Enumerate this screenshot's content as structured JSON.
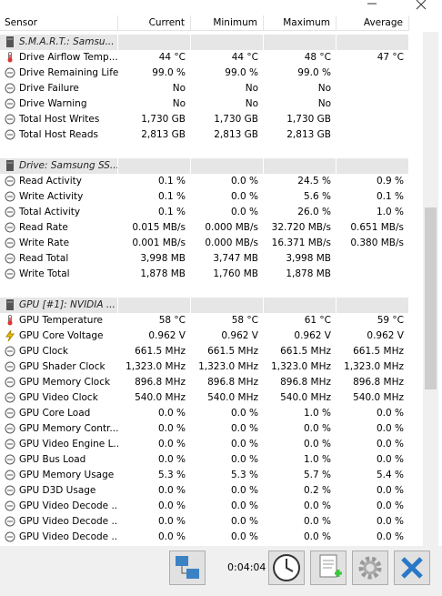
{
  "table": {
    "columns": [
      "Sensor",
      "Current",
      "Minimum",
      "Maximum",
      "Average"
    ],
    "groups": [
      {
        "title": "S.M.A.R.T.: Samsu...",
        "rows": [
          {
            "icon": "temp",
            "label": "Drive Airflow Temp...",
            "values": [
              "44 °C",
              "44 °C",
              "48 °C",
              "47 °C"
            ]
          },
          {
            "icon": "sensor",
            "label": "Drive Remaining Life",
            "values": [
              "99.0 %",
              "99.0 %",
              "99.0 %"
            ]
          },
          {
            "icon": "sensor",
            "label": "Drive Failure",
            "values": [
              "No",
              "No",
              "No"
            ]
          },
          {
            "icon": "sensor",
            "label": "Drive Warning",
            "values": [
              "No",
              "No",
              "No"
            ]
          },
          {
            "icon": "sensor",
            "label": "Total Host Writes",
            "values": [
              "1,730 GB",
              "1,730 GB",
              "1,730 GB"
            ]
          },
          {
            "icon": "sensor",
            "label": "Total Host Reads",
            "values": [
              "2,813 GB",
              "2,813 GB",
              "2,813 GB"
            ]
          }
        ]
      },
      {
        "title": "Drive: Samsung SS...",
        "rows": [
          {
            "icon": "sensor",
            "label": "Read Activity",
            "values": [
              "0.1 %",
              "0.0 %",
              "24.5 %",
              "0.9 %"
            ]
          },
          {
            "icon": "sensor",
            "label": "Write Activity",
            "values": [
              "0.1 %",
              "0.0 %",
              "5.6 %",
              "0.1 %"
            ]
          },
          {
            "icon": "sensor",
            "label": "Total Activity",
            "values": [
              "0.1 %",
              "0.0 %",
              "26.0 %",
              "1.0 %"
            ]
          },
          {
            "icon": "sensor",
            "label": "Read Rate",
            "values": [
              "0.015 MB/s",
              "0.000 MB/s",
              "32.720 MB/s",
              "0.651 MB/s"
            ]
          },
          {
            "icon": "sensor",
            "label": "Write Rate",
            "values": [
              "0.001 MB/s",
              "0.000 MB/s",
              "16.371 MB/s",
              "0.380 MB/s"
            ]
          },
          {
            "icon": "sensor",
            "label": "Read Total",
            "values": [
              "3,998 MB",
              "3,747 MB",
              "3,998 MB"
            ]
          },
          {
            "icon": "sensor",
            "label": "Write Total",
            "values": [
              "1,878 MB",
              "1,760 MB",
              "1,878 MB"
            ]
          }
        ]
      },
      {
        "title": "GPU [#1]: NVIDIA ...",
        "rows": [
          {
            "icon": "temp",
            "label": "GPU Temperature",
            "values": [
              "58 °C",
              "58 °C",
              "61 °C",
              "59 °C"
            ]
          },
          {
            "icon": "volt",
            "label": "GPU Core Voltage",
            "values": [
              "0.962 V",
              "0.962 V",
              "0.962 V",
              "0.962 V"
            ]
          },
          {
            "icon": "sensor",
            "label": "GPU Clock",
            "values": [
              "661.5 MHz",
              "661.5 MHz",
              "661.5 MHz",
              "661.5 MHz"
            ]
          },
          {
            "icon": "sensor",
            "label": "GPU Shader Clock",
            "values": [
              "1,323.0 MHz",
              "1,323.0 MHz",
              "1,323.0 MHz",
              "1,323.0 MHz"
            ]
          },
          {
            "icon": "sensor",
            "label": "GPU Memory Clock",
            "values": [
              "896.8 MHz",
              "896.8 MHz",
              "896.8 MHz",
              "896.8 MHz"
            ]
          },
          {
            "icon": "sensor",
            "label": "GPU Video Clock",
            "values": [
              "540.0 MHz",
              "540.0 MHz",
              "540.0 MHz",
              "540.0 MHz"
            ]
          },
          {
            "icon": "sensor",
            "label": "GPU Core Load",
            "values": [
              "0.0 %",
              "0.0 %",
              "1.0 %",
              "0.0 %"
            ]
          },
          {
            "icon": "sensor",
            "label": "GPU Memory Contr...",
            "values": [
              "0.0 %",
              "0.0 %",
              "0.0 %",
              "0.0 %"
            ]
          },
          {
            "icon": "sensor",
            "label": "GPU Video Engine L...",
            "values": [
              "0.0 %",
              "0.0 %",
              "0.0 %",
              "0.0 %"
            ]
          },
          {
            "icon": "sensor",
            "label": "GPU Bus Load",
            "values": [
              "0.0 %",
              "0.0 %",
              "1.0 %",
              "0.0 %"
            ]
          },
          {
            "icon": "sensor",
            "label": "GPU Memory Usage",
            "values": [
              "5.3 %",
              "5.3 %",
              "5.7 %",
              "5.4 %"
            ]
          },
          {
            "icon": "sensor",
            "label": "GPU D3D Usage",
            "values": [
              "0.0 %",
              "0.0 %",
              "0.2 %",
              "0.0 %"
            ]
          },
          {
            "icon": "sensor",
            "label": "GPU Video Decode ...",
            "values": [
              "0.0 %",
              "0.0 %",
              "0.0 %",
              "0.0 %"
            ]
          },
          {
            "icon": "sensor",
            "label": "GPU Video Decode ...",
            "values": [
              "0.0 %",
              "0.0 %",
              "0.0 %",
              "0.0 %"
            ]
          },
          {
            "icon": "sensor",
            "label": "GPU Video Decode ...",
            "values": [
              "0.0 %",
              "0.0 %",
              "0.0 %",
              "0.0 %"
            ]
          }
        ]
      }
    ]
  },
  "toolbar": {
    "timer": "0:04:04"
  }
}
